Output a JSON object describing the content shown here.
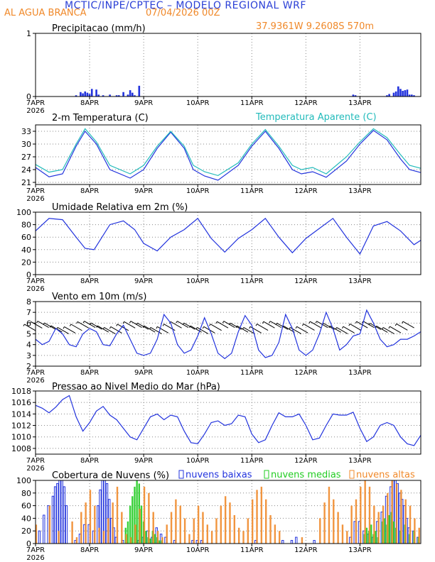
{
  "header": {
    "title": "MCTIC/INPE/CPTEC – MODELO REGIONAL WRF",
    "location": "AL AGUA BRANCA",
    "run": "07/04/2026 00Z",
    "coords": "37.9361W  9.2608S  570m"
  },
  "colors": {
    "blue": "#2233dd",
    "cyan": "#22bbbb",
    "orange": "#f0892a",
    "green": "#22cc22",
    "black": "#000000"
  },
  "chart_data": [
    {
      "id": "precip",
      "type": "bar",
      "title": "Precipitacao (mm/h)",
      "x_ticks": [
        "7APR",
        "8APR",
        "9APR",
        "10APR",
        "11APR",
        "12APR",
        "13APR"
      ],
      "x_year": "2026",
      "y_ticks": [
        "0",
        "1"
      ],
      "ylim": [
        0,
        1
      ],
      "x_hours": [
        18,
        20,
        21,
        22,
        23,
        24,
        25,
        27,
        28,
        30,
        33,
        36,
        37,
        39,
        41,
        42,
        43,
        44,
        46,
        141,
        142,
        156,
        157,
        159,
        160,
        161,
        162,
        163,
        164,
        165,
        166,
        167,
        168
      ],
      "values": [
        0.02,
        0.07,
        0.05,
        0.08,
        0.06,
        0.04,
        0.12,
        0.11,
        0.03,
        0.02,
        0.03,
        0.02,
        0.02,
        0.07,
        0.03,
        0.1,
        0.06,
        0.02,
        0.17,
        0.03,
        0.02,
        0.02,
        0.04,
        0.06,
        0.08,
        0.16,
        0.12,
        0.09,
        0.1,
        0.11,
        0.03,
        0.03,
        0.02
      ]
    },
    {
      "id": "temp",
      "type": "line",
      "title": "2-m Temperatura (C)",
      "x_ticks": [
        "7APR",
        "8APR",
        "9APR",
        "10APR",
        "11APR",
        "12APR",
        "13APR"
      ],
      "x_year": "2026",
      "y_ticks": [
        "21",
        "24",
        "27",
        "30",
        "33"
      ],
      "ylim": [
        20.5,
        34.5
      ],
      "series": [
        {
          "name": "",
          "color": "#2233dd",
          "x_hours": [
            0,
            6,
            12,
            18,
            22,
            27,
            33,
            42,
            48,
            54,
            60,
            66,
            70,
            75,
            81,
            90,
            96,
            102,
            108,
            114,
            118,
            123,
            129,
            138,
            144,
            150,
            156,
            162,
            166,
            171
          ],
          "values": [
            24.5,
            22.3,
            23.0,
            29.5,
            33.0,
            30.0,
            24.0,
            22.0,
            24.0,
            29.0,
            32.8,
            29.0,
            24.0,
            22.5,
            21.5,
            25.0,
            29.5,
            33.0,
            29.0,
            24.0,
            23.0,
            23.5,
            22.2,
            26.0,
            30.0,
            33.2,
            31.0,
            26.5,
            24.0,
            23.3
          ]
        },
        {
          "name": "Temperatura Aparente (C)",
          "color": "#22bbbb",
          "x_hours": [
            0,
            6,
            12,
            18,
            22,
            27,
            33,
            42,
            48,
            54,
            60,
            66,
            70,
            75,
            81,
            90,
            96,
            102,
            108,
            114,
            118,
            123,
            129,
            138,
            144,
            150,
            156,
            162,
            166,
            171
          ],
          "values": [
            25.2,
            23.4,
            24.0,
            30.0,
            33.6,
            30.5,
            25.0,
            23.0,
            25.0,
            29.5,
            33.0,
            29.5,
            25.0,
            23.5,
            22.6,
            25.6,
            30.0,
            33.4,
            29.5,
            25.0,
            24.0,
            24.5,
            23.0,
            27.0,
            30.5,
            33.6,
            31.5,
            27.5,
            25.0,
            24.3
          ]
        }
      ]
    },
    {
      "id": "rh",
      "type": "line",
      "title": "Umidade Relativa em 2m (%)",
      "x_ticks": [
        "7APR",
        "8APR",
        "9APR",
        "10APR",
        "11APR",
        "12APR",
        "13APR"
      ],
      "x_year": "2026",
      "y_ticks": [
        "0",
        "20",
        "40",
        "60",
        "80",
        "100"
      ],
      "ylim": [
        0,
        100
      ],
      "x_hours": [
        0,
        6,
        12,
        18,
        22,
        26,
        33,
        39,
        44,
        48,
        54,
        60,
        66,
        72,
        78,
        84,
        90,
        96,
        102,
        108,
        114,
        120,
        126,
        132,
        138,
        144,
        150,
        156,
        162,
        168,
        171
      ],
      "values": [
        70,
        90,
        88,
        60,
        42,
        40,
        80,
        86,
        72,
        50,
        38,
        60,
        72,
        90,
        58,
        36,
        58,
        72,
        90,
        60,
        35,
        58,
        74,
        90,
        60,
        33,
        78,
        85,
        70,
        48,
        55
      ]
    },
    {
      "id": "wind",
      "type": "line",
      "title": "Vento em 10m (m/s)",
      "x_ticks": [
        "7APR",
        "8APR",
        "9APR",
        "10APR",
        "11APR",
        "12APR",
        "13APR"
      ],
      "x_year": "2026",
      "y_ticks": [
        "2",
        "3",
        "4",
        "5",
        "6",
        "7",
        "8"
      ],
      "ylim": [
        2,
        8
      ],
      "x_hours": [
        0,
        3,
        6,
        9,
        12,
        15,
        18,
        21,
        24,
        27,
        30,
        33,
        36,
        39,
        42,
        45,
        48,
        51,
        54,
        57,
        60,
        63,
        66,
        69,
        72,
        75,
        78,
        81,
        84,
        87,
        90,
        93,
        96,
        99,
        102,
        105,
        108,
        111,
        114,
        117,
        120,
        123,
        126,
        129,
        132,
        135,
        138,
        141,
        144,
        147,
        150,
        153,
        156,
        159,
        162,
        165,
        168,
        171
      ],
      "values": [
        4.5,
        4.0,
        4.3,
        5.5,
        5.0,
        4.0,
        3.8,
        5.0,
        5.5,
        5.2,
        4.0,
        3.9,
        5.0,
        5.8,
        4.5,
        3.2,
        3.0,
        3.2,
        4.5,
        6.8,
        6.0,
        4.0,
        3.2,
        3.5,
        4.8,
        6.5,
        5.0,
        3.2,
        2.7,
        3.2,
        5.2,
        6.7,
        5.8,
        3.5,
        2.8,
        3.0,
        4.2,
        6.8,
        5.5,
        3.5,
        3.0,
        3.5,
        5.0,
        7.0,
        5.5,
        3.5,
        4.0,
        4.8,
        5.0,
        7.2,
        6.0,
        4.5,
        3.8,
        4.0,
        4.5,
        4.5,
        4.8,
        5.2
      ],
      "barbs": {
        "count": 58,
        "angle_deg": 150,
        "length": 18
      }
    },
    {
      "id": "pres",
      "type": "line",
      "title": "Pressao ao Nivel Medio do Mar (hPa)",
      "x_ticks": [
        "7APR",
        "8APR",
        "9APR",
        "10APR",
        "11APR",
        "12APR",
        "13APR"
      ],
      "x_year": "2026",
      "y_ticks": [
        "1008",
        "1010",
        "1012",
        "1014",
        "1016",
        "1018"
      ],
      "ylim": [
        1007,
        1018
      ],
      "x_hours": [
        0,
        3,
        6,
        9,
        12,
        15,
        18,
        21,
        24,
        27,
        30,
        33,
        36,
        39,
        42,
        45,
        48,
        51,
        54,
        57,
        60,
        63,
        66,
        69,
        72,
        75,
        78,
        81,
        84,
        87,
        90,
        93,
        96,
        99,
        102,
        105,
        108,
        111,
        114,
        117,
        120,
        123,
        126,
        129,
        132,
        135,
        138,
        141,
        144,
        147,
        150,
        153,
        156,
        159,
        162,
        165,
        168,
        171
      ],
      "values": [
        1015.5,
        1015.0,
        1014.2,
        1015.2,
        1016.5,
        1017.2,
        1013.5,
        1011.0,
        1012.5,
        1014.5,
        1015.3,
        1013.8,
        1013.0,
        1011.5,
        1010.0,
        1009.5,
        1011.5,
        1013.5,
        1014.0,
        1013.0,
        1013.8,
        1013.5,
        1011.0,
        1009.0,
        1008.8,
        1010.5,
        1012.5,
        1012.8,
        1012.0,
        1012.3,
        1013.8,
        1013.5,
        1010.5,
        1009.0,
        1009.5,
        1012.0,
        1014.2,
        1013.5,
        1013.5,
        1014.0,
        1012.0,
        1009.5,
        1009.8,
        1012.0,
        1014.0,
        1013.8,
        1013.8,
        1014.3,
        1011.5,
        1009.2,
        1010.0,
        1012.0,
        1012.5,
        1012.0,
        1010.0,
        1008.8,
        1008.5,
        1010.3
      ]
    },
    {
      "id": "clouds",
      "type": "bar",
      "title": "Cobertura de Nuvens (%)",
      "x_ticks": [
        "7APR",
        "8APR",
        "9APR",
        "10APR",
        "11APR",
        "12APR",
        "13APR"
      ],
      "x_year": "2026",
      "y_ticks": [
        "0",
        "20",
        "40",
        "60",
        "80",
        "100"
      ],
      "ylim": [
        0,
        100
      ],
      "series": [
        {
          "name": "nuvens baixas",
          "color": "#2233dd",
          "x_hours": [
            2,
            4,
            6,
            8,
            9,
            10,
            11,
            12,
            13,
            14,
            18,
            20,
            22,
            24,
            26,
            28,
            29,
            30,
            31,
            32,
            33,
            34,
            35,
            36,
            39,
            46,
            48,
            50,
            52,
            54,
            56,
            58,
            62,
            70,
            72,
            74,
            98,
            110,
            114,
            116,
            124,
            140,
            142,
            144,
            146,
            148,
            150,
            152,
            154,
            156,
            158,
            159,
            160,
            161,
            162,
            163,
            164,
            165,
            166,
            168,
            170
          ],
          "values": [
            20,
            45,
            60,
            75,
            90,
            95,
            100,
            100,
            90,
            60,
            5,
            15,
            30,
            30,
            20,
            60,
            85,
            100,
            100,
            95,
            70,
            40,
            25,
            10,
            5,
            5,
            10,
            20,
            10,
            25,
            15,
            10,
            5,
            5,
            5,
            5,
            5,
            5,
            5,
            10,
            5,
            10,
            35,
            35,
            20,
            15,
            10,
            35,
            50,
            75,
            90,
            100,
            100,
            95,
            80,
            70,
            60,
            40,
            25,
            20,
            10
          ]
        },
        {
          "name": "nuvens medias",
          "color": "#22cc22",
          "x_hours": [
            40,
            41,
            42,
            43,
            44,
            45,
            46,
            47,
            48,
            49,
            50,
            51,
            52,
            53,
            54,
            55,
            56,
            146,
            147,
            148,
            149,
            150,
            151,
            152,
            154,
            155,
            156,
            157,
            158,
            159,
            160,
            162,
            164,
            166,
            168,
            170
          ],
          "values": [
            25,
            35,
            60,
            75,
            90,
            100,
            95,
            60,
            35,
            20,
            10,
            8,
            20,
            15,
            10,
            5,
            5,
            15,
            25,
            20,
            30,
            15,
            20,
            10,
            35,
            40,
            30,
            45,
            50,
            35,
            25,
            20,
            30,
            15,
            20,
            10
          ]
        },
        {
          "name": "nuvens altas",
          "color": "#f0892a",
          "x_hours": [
            0,
            6,
            10,
            16,
            18,
            20,
            22,
            24,
            26,
            28,
            30,
            32,
            34,
            36,
            38,
            40,
            42,
            44,
            46,
            48,
            50,
            52,
            54,
            56,
            58,
            60,
            62,
            64,
            66,
            68,
            70,
            72,
            74,
            76,
            78,
            80,
            82,
            84,
            86,
            88,
            90,
            92,
            94,
            96,
            98,
            100,
            102,
            104,
            106,
            108,
            118,
            126,
            128,
            130,
            132,
            134,
            136,
            138,
            140,
            142,
            144,
            146,
            148,
            150,
            152,
            154,
            156,
            158,
            160,
            162,
            164,
            166,
            168,
            170
          ],
          "values": [
            30,
            60,
            20,
            35,
            10,
            50,
            65,
            85,
            60,
            25,
            20,
            40,
            65,
            90,
            50,
            15,
            10,
            30,
            55,
            90,
            80,
            50,
            20,
            10,
            30,
            50,
            70,
            60,
            40,
            15,
            40,
            60,
            50,
            30,
            20,
            40,
            60,
            75,
            65,
            45,
            25,
            20,
            40,
            70,
            85,
            90,
            70,
            45,
            30,
            20,
            10,
            40,
            65,
            90,
            70,
            50,
            30,
            20,
            60,
            70,
            90,
            100,
            90,
            60,
            50,
            60,
            80,
            100,
            95,
            85,
            70,
            60,
            40,
            25
          ]
        }
      ]
    }
  ]
}
